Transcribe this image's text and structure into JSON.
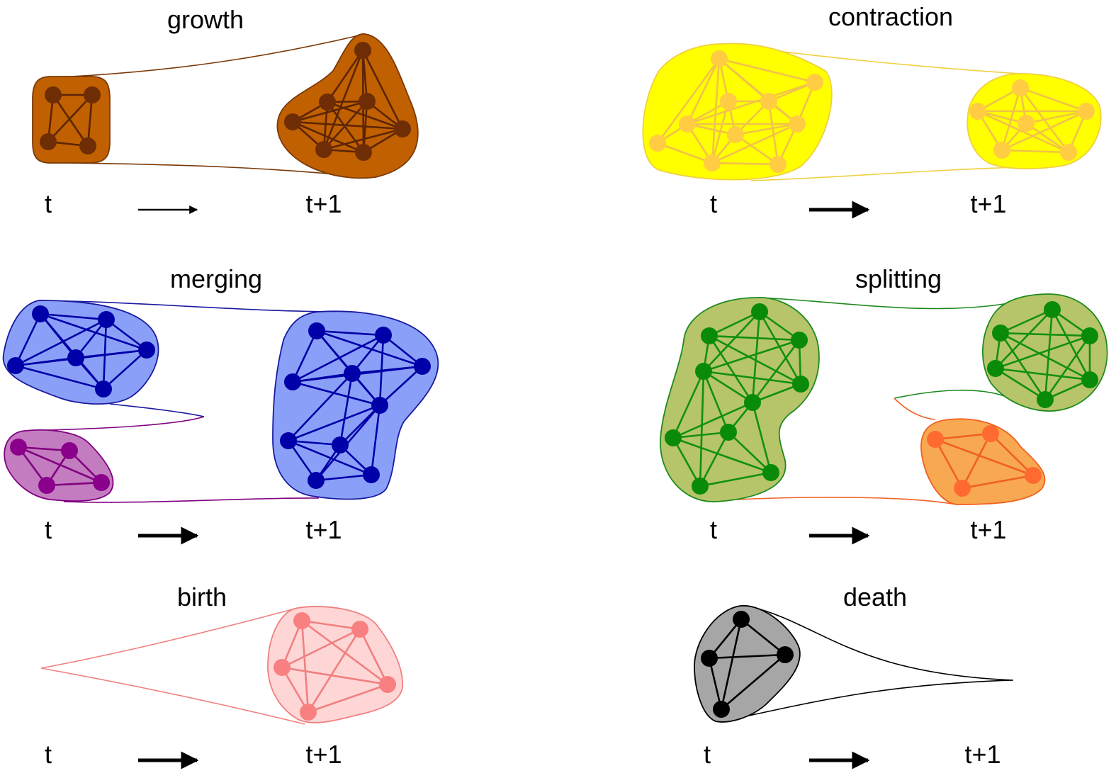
{
  "panels": {
    "growth": {
      "title": "growth",
      "t_label": "t",
      "t1_label": "t+1",
      "fill": "#c06000",
      "stroke": "#7a3a0a",
      "node": "#6e2d05",
      "edge": "#5c2504"
    },
    "contraction": {
      "title": "contraction",
      "t_label": "t",
      "t1_label": "t+1",
      "fill": "#ffff00",
      "stroke": "#f0d040",
      "node": "#ffcc44",
      "edge": "#f2c24a"
    },
    "merging": {
      "title": "merging",
      "t_label": "t",
      "t1_label": "t+1",
      "fill": "#8aa0f8",
      "stroke": "#1a1aa0",
      "node": "#0000a8",
      "edge": "#0000a8",
      "fill2": "#c47cc0",
      "stroke2": "#800080",
      "node2": "#8a008a"
    },
    "splitting": {
      "title": "splitting",
      "t_label": "t",
      "t1_label": "t+1",
      "fill": "#b6c46a",
      "stroke": "#1e8a1e",
      "node": "#0a8a0a",
      "edge": "#109010",
      "fill2": "#f8a850",
      "stroke2": "#f06020",
      "node2": "#ff6a30"
    },
    "birth": {
      "title": "birth",
      "t_label": "t",
      "t1_label": "t+1",
      "fill": "#ffd6d6",
      "stroke": "#f08080",
      "node": "#f88080",
      "edge": "#f08080"
    },
    "death": {
      "title": "death",
      "t_label": "t",
      "t1_label": "t+1",
      "fill": "#a6a6a6",
      "stroke": "#000000",
      "node": "#000000",
      "edge": "#000000"
    }
  }
}
